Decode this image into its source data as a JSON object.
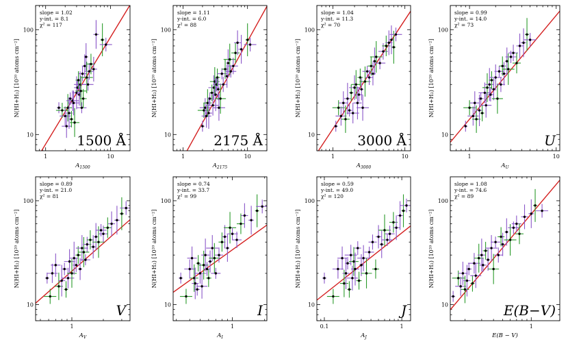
{
  "figure_description_unit_label": "N(HI+H₂) [10²⁰ atoms cm⁻²]",
  "chart_data": [
    {
      "type": "scatter",
      "id": "p1500",
      "band_label": "1500 Å",
      "xlabel_main": "A",
      "xlabel_sub": "1500",
      "ylabel": "N(HI+H₂) [10²⁰ atoms cm⁻²]",
      "xscale": "log",
      "yscale": "log",
      "xlim": [
        0.7,
        20
      ],
      "ylim": [
        7,
        170
      ],
      "xticks": [
        1,
        10
      ],
      "xtick_labels": [
        "1",
        "10"
      ],
      "yticks": [
        10,
        100
      ],
      "ytick_labels": [
        "10",
        "100"
      ],
      "fit": {
        "slope": 1.02,
        "intercept": 8.1,
        "chi2": 117
      },
      "stats_lines": [
        "slope = 1.02",
        "y-int. = 8.1",
        "χ² = 117"
      ],
      "points": [
        [
          1.6,
          18
        ],
        [
          1.8,
          17
        ],
        [
          2.0,
          15
        ],
        [
          2.1,
          12
        ],
        [
          2.2,
          18
        ],
        [
          2.3,
          16
        ],
        [
          2.4,
          22
        ],
        [
          2.5,
          14
        ],
        [
          2.6,
          21
        ],
        [
          2.7,
          20
        ],
        [
          2.8,
          13
        ],
        [
          3.0,
          25
        ],
        [
          3.1,
          28
        ],
        [
          3.2,
          33
        ],
        [
          3.3,
          24
        ],
        [
          3.4,
          30
        ],
        [
          3.5,
          26
        ],
        [
          3.6,
          18
        ],
        [
          3.7,
          38
        ],
        [
          3.8,
          22
        ],
        [
          4.0,
          45
        ],
        [
          4.2,
          55
        ],
        [
          4.3,
          35
        ],
        [
          4.5,
          30
        ],
        [
          4.7,
          40
        ],
        [
          5.0,
          47
        ],
        [
          5.5,
          42
        ],
        [
          6.0,
          90
        ],
        [
          7.5,
          80
        ],
        [
          8.5,
          72
        ]
      ]
    },
    {
      "type": "scatter",
      "id": "p2175",
      "band_label": "2175 Å",
      "xlabel_main": "A",
      "xlabel_sub": "2175",
      "ylabel": "N(HI+H₂) [10²⁰ atoms cm⁻²]",
      "xscale": "log",
      "yscale": "log",
      "xlim": [
        0.7,
        20
      ],
      "ylim": [
        7,
        170
      ],
      "xticks": [
        1,
        10
      ],
      "xtick_labels": [
        "1",
        "10"
      ],
      "yticks": [
        10,
        100
      ],
      "ytick_labels": [
        "10",
        "100"
      ],
      "fit": {
        "slope": 1.11,
        "intercept": 6.0,
        "chi2": 88
      },
      "stats_lines": [
        "slope = 1.11",
        "y-int. = 6.0",
        "χ² = 88"
      ],
      "points": [
        [
          2.0,
          12
        ],
        [
          2.1,
          17
        ],
        [
          2.2,
          18
        ],
        [
          2.3,
          15
        ],
        [
          2.4,
          20
        ],
        [
          2.5,
          16
        ],
        [
          2.6,
          22
        ],
        [
          2.8,
          25
        ],
        [
          2.9,
          19
        ],
        [
          3.0,
          28
        ],
        [
          3.1,
          32
        ],
        [
          3.2,
          24
        ],
        [
          3.3,
          30
        ],
        [
          3.4,
          35
        ],
        [
          3.5,
          27
        ],
        [
          3.6,
          18
        ],
        [
          3.8,
          22
        ],
        [
          4.0,
          38
        ],
        [
          4.2,
          30
        ],
        [
          4.5,
          42
        ],
        [
          4.8,
          36
        ],
        [
          5.0,
          48
        ],
        [
          5.3,
          52
        ],
        [
          5.5,
          40
        ],
        [
          6.0,
          45
        ],
        [
          6.5,
          60
        ],
        [
          7.0,
          75
        ],
        [
          8.0,
          65
        ],
        [
          10.0,
          80
        ],
        [
          11.0,
          72
        ]
      ]
    },
    {
      "type": "scatter",
      "id": "p3000",
      "band_label": "3000 Å",
      "xlabel_main": "A",
      "xlabel_sub": "3000",
      "ylabel": "N(HI+H₂) [10²⁰ atoms cm⁻²]",
      "xscale": "log",
      "yscale": "log",
      "xlim": [
        0.6,
        12
      ],
      "ylim": [
        7,
        170
      ],
      "xticks": [
        1,
        10
      ],
      "xtick_labels": [
        "1",
        "10"
      ],
      "yticks": [
        10,
        100
      ],
      "ytick_labels": [
        "10",
        "100"
      ],
      "fit": {
        "slope": 1.04,
        "intercept": 11.3,
        "chi2": 70
      },
      "stats_lines": [
        "slope = 1.04",
        "y-int. = 11.3",
        "χ² = 70"
      ],
      "points": [
        [
          1.1,
          12
        ],
        [
          1.2,
          18
        ],
        [
          1.3,
          15
        ],
        [
          1.4,
          20
        ],
        [
          1.5,
          14
        ],
        [
          1.6,
          22
        ],
        [
          1.7,
          17
        ],
        [
          1.8,
          25
        ],
        [
          1.9,
          16
        ],
        [
          2.0,
          28
        ],
        [
          2.1,
          30
        ],
        [
          2.2,
          20
        ],
        [
          2.3,
          24
        ],
        [
          2.4,
          35
        ],
        [
          2.5,
          27
        ],
        [
          2.6,
          18
        ],
        [
          2.8,
          32
        ],
        [
          3.0,
          40
        ],
        [
          3.2,
          35
        ],
        [
          3.4,
          45
        ],
        [
          3.6,
          38
        ],
        [
          3.8,
          50
        ],
        [
          4.0,
          55
        ],
        [
          4.5,
          48
        ],
        [
          5.0,
          62
        ],
        [
          5.5,
          70
        ],
        [
          6.0,
          75
        ],
        [
          6.5,
          80
        ],
        [
          7.0,
          68
        ],
        [
          7.5,
          90
        ]
      ]
    },
    {
      "type": "scatter",
      "id": "pU",
      "band_label": "U",
      "xlabel_main": "A",
      "xlabel_sub": "U",
      "ylabel": "N(HI+H₂) [10²⁰ atoms cm⁻²]",
      "xscale": "log",
      "yscale": "log",
      "xlim": [
        0.6,
        11
      ],
      "ylim": [
        7,
        170
      ],
      "xticks": [
        1,
        10
      ],
      "xtick_labels": [
        "1",
        "10"
      ],
      "yticks": [
        10,
        100
      ],
      "ytick_labels": [
        "10",
        "100"
      ],
      "fit": {
        "slope": 0.99,
        "intercept": 14.0,
        "chi2": 73
      },
      "stats_lines": [
        "slope = 0.99",
        "y-int. = 14.0",
        "χ² = 73"
      ],
      "points": [
        [
          0.9,
          12
        ],
        [
          1.0,
          18
        ],
        [
          1.1,
          15
        ],
        [
          1.15,
          20
        ],
        [
          1.2,
          14
        ],
        [
          1.3,
          17
        ],
        [
          1.35,
          22
        ],
        [
          1.4,
          16
        ],
        [
          1.5,
          25
        ],
        [
          1.55,
          19
        ],
        [
          1.6,
          28
        ],
        [
          1.7,
          30
        ],
        [
          1.75,
          24
        ],
        [
          1.8,
          33
        ],
        [
          1.9,
          27
        ],
        [
          2.0,
          35
        ],
        [
          2.1,
          22
        ],
        [
          2.2,
          40
        ],
        [
          2.3,
          30
        ],
        [
          2.4,
          45
        ],
        [
          2.5,
          38
        ],
        [
          2.7,
          50
        ],
        [
          2.8,
          42
        ],
        [
          3.0,
          55
        ],
        [
          3.2,
          60
        ],
        [
          3.5,
          48
        ],
        [
          3.8,
          70
        ],
        [
          4.2,
          75
        ],
        [
          4.6,
          90
        ],
        [
          5.0,
          80
        ]
      ]
    },
    {
      "type": "scatter",
      "id": "pV",
      "band_label": "V",
      "xlabel_main": "A",
      "xlabel_sub": "V",
      "ylabel": "N(HI+H₂) [10²⁰ atoms cm⁻²]",
      "xscale": "log",
      "yscale": "log",
      "xlim": [
        0.45,
        3.6
      ],
      "ylim": [
        7,
        170
      ],
      "xticks": [
        1
      ],
      "xtick_labels": [
        "1"
      ],
      "yticks": [
        10,
        100
      ],
      "ytick_labels": [
        "10",
        "100"
      ],
      "fit": {
        "slope": 0.89,
        "intercept": 21.0,
        "chi2": 81
      },
      "stats_lines": [
        "slope = 0.89",
        "y-int. = 21.0",
        "χ² = 81"
      ],
      "points": [
        [
          0.58,
          18
        ],
        [
          0.62,
          12
        ],
        [
          0.65,
          20
        ],
        [
          0.7,
          24
        ],
        [
          0.75,
          15
        ],
        [
          0.8,
          17
        ],
        [
          0.85,
          22
        ],
        [
          0.88,
          14
        ],
        [
          0.92,
          18
        ],
        [
          0.95,
          26
        ],
        [
          1.0,
          20
        ],
        [
          1.05,
          28
        ],
        [
          1.1,
          24
        ],
        [
          1.15,
          30
        ],
        [
          1.2,
          22
        ],
        [
          1.25,
          35
        ],
        [
          1.3,
          32
        ],
        [
          1.35,
          27
        ],
        [
          1.4,
          38
        ],
        [
          1.5,
          42
        ],
        [
          1.6,
          36
        ],
        [
          1.7,
          45
        ],
        [
          1.8,
          40
        ],
        [
          1.9,
          52
        ],
        [
          2.0,
          48
        ],
        [
          2.2,
          55
        ],
        [
          2.4,
          60
        ],
        [
          2.7,
          65
        ],
        [
          3.0,
          75
        ],
        [
          3.3,
          85
        ]
      ]
    },
    {
      "type": "scatter",
      "id": "pI",
      "band_label": "I",
      "xlabel_main": "A",
      "xlabel_sub": "I",
      "ylabel": "N(HI+H₂) [10²⁰ atoms cm⁻²]",
      "xscale": "log",
      "yscale": "log",
      "xlim": [
        0.28,
        2.1
      ],
      "ylim": [
        7,
        170
      ],
      "xticks": [
        1
      ],
      "xtick_labels": [
        "1"
      ],
      "yticks": [
        10,
        100
      ],
      "ytick_labels": [
        "10",
        "100"
      ],
      "fit": {
        "slope": 0.74,
        "intercept": 33.7,
        "chi2": 99
      },
      "stats_lines": [
        "slope = 0.74",
        "y-int. = 33.7",
        "χ² = 99"
      ],
      "points": [
        [
          0.33,
          18
        ],
        [
          0.37,
          12
        ],
        [
          0.4,
          22
        ],
        [
          0.42,
          28
        ],
        [
          0.44,
          18
        ],
        [
          0.45,
          16
        ],
        [
          0.47,
          14
        ],
        [
          0.48,
          25
        ],
        [
          0.5,
          20
        ],
        [
          0.52,
          15
        ],
        [
          0.54,
          24
        ],
        [
          0.56,
          30
        ],
        [
          0.58,
          22
        ],
        [
          0.6,
          18
        ],
        [
          0.62,
          26
        ],
        [
          0.65,
          35
        ],
        [
          0.68,
          28
        ],
        [
          0.7,
          20
        ],
        [
          0.75,
          30
        ],
        [
          0.8,
          40
        ],
        [
          0.85,
          45
        ],
        [
          0.9,
          35
        ],
        [
          0.95,
          55
        ],
        [
          1.0,
          48
        ],
        [
          1.1,
          42
        ],
        [
          1.2,
          60
        ],
        [
          1.3,
          72
        ],
        [
          1.5,
          65
        ],
        [
          1.7,
          80
        ],
        [
          1.9,
          88
        ]
      ]
    },
    {
      "type": "scatter",
      "id": "pJ",
      "band_label": "J",
      "xlabel_main": "A",
      "xlabel_sub": "J",
      "ylabel": "N(HI+H₂) [10²⁰ atoms cm⁻²]",
      "xscale": "log",
      "yscale": "log",
      "xlim": [
        0.08,
        1.3
      ],
      "ylim": [
        7,
        170
      ],
      "xticks": [
        0.1,
        1
      ],
      "xtick_labels": [
        "0.1",
        "1"
      ],
      "yticks": [
        10,
        100
      ],
      "ytick_labels": [
        "10",
        "100"
      ],
      "fit": {
        "slope": 0.59,
        "intercept": 49.0,
        "chi2": 120
      },
      "stats_lines": [
        "slope = 0.59",
        "y-int. = 49.0",
        "χ² = 120"
      ],
      "points": [
        [
          0.1,
          18
        ],
        [
          0.13,
          12
        ],
        [
          0.15,
          22
        ],
        [
          0.17,
          28
        ],
        [
          0.18,
          16
        ],
        [
          0.19,
          20
        ],
        [
          0.2,
          25
        ],
        [
          0.21,
          14
        ],
        [
          0.22,
          30
        ],
        [
          0.23,
          18
        ],
        [
          0.24,
          26
        ],
        [
          0.25,
          22
        ],
        [
          0.27,
          35
        ],
        [
          0.28,
          17
        ],
        [
          0.3,
          24
        ],
        [
          0.32,
          28
        ],
        [
          0.35,
          20
        ],
        [
          0.38,
          32
        ],
        [
          0.42,
          40
        ],
        [
          0.46,
          22
        ],
        [
          0.5,
          45
        ],
        [
          0.55,
          38
        ],
        [
          0.6,
          52
        ],
        [
          0.65,
          42
        ],
        [
          0.7,
          48
        ],
        [
          0.78,
          62
        ],
        [
          0.85,
          55
        ],
        [
          0.95,
          72
        ],
        [
          1.05,
          80
        ],
        [
          1.15,
          90
        ]
      ]
    },
    {
      "type": "scatter",
      "id": "pEBV",
      "band_label": "E(B−V)",
      "xlabel_main": "E(B − V)",
      "xlabel_sub": "",
      "ylabel": "N(HI+H₂) [10²⁰ atoms cm⁻²]",
      "xscale": "log",
      "yscale": "log",
      "xlim": [
        0.14,
        2.0
      ],
      "ylim": [
        7,
        170
      ],
      "xticks": [
        1
      ],
      "xtick_labels": [
        "1"
      ],
      "yticks": [
        10,
        100
      ],
      "ytick_labels": [
        "10",
        "100"
      ],
      "fit": {
        "slope": 1.08,
        "intercept": 74.6,
        "chi2": 89
      },
      "stats_lines": [
        "slope = 1.08",
        "y-int. = 74.6",
        "χ² = 89"
      ],
      "points": [
        [
          0.15,
          12
        ],
        [
          0.17,
          18
        ],
        [
          0.18,
          15
        ],
        [
          0.19,
          20
        ],
        [
          0.2,
          14
        ],
        [
          0.21,
          17
        ],
        [
          0.22,
          22
        ],
        [
          0.24,
          16
        ],
        [
          0.25,
          25
        ],
        [
          0.26,
          19
        ],
        [
          0.28,
          28
        ],
        [
          0.3,
          30
        ],
        [
          0.31,
          24
        ],
        [
          0.33,
          33
        ],
        [
          0.35,
          27
        ],
        [
          0.38,
          35
        ],
        [
          0.4,
          22
        ],
        [
          0.42,
          40
        ],
        [
          0.45,
          30
        ],
        [
          0.48,
          45
        ],
        [
          0.5,
          38
        ],
        [
          0.55,
          50
        ],
        [
          0.6,
          42
        ],
        [
          0.65,
          55
        ],
        [
          0.7,
          60
        ],
        [
          0.75,
          48
        ],
        [
          0.85,
          70
        ],
        [
          1.0,
          75
        ],
        [
          1.1,
          90
        ],
        [
          1.3,
          80
        ]
      ]
    }
  ]
}
